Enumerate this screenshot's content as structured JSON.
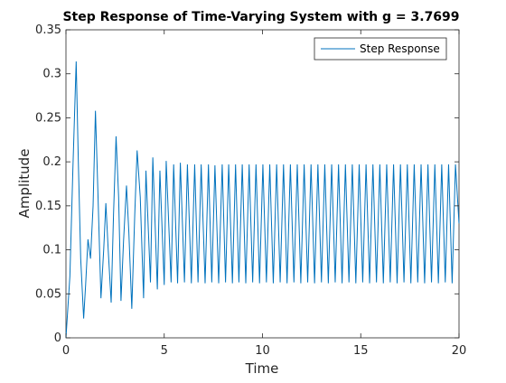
{
  "chart_data": {
    "type": "line",
    "title": "Step Response of Time-Varying System with g = 3.7699",
    "xlabel": "Time",
    "ylabel": "Amplitude",
    "xlim": [
      0,
      20
    ],
    "ylim": [
      0,
      0.35
    ],
    "xticks": [
      0,
      5,
      10,
      15,
      20
    ],
    "xtick_labels": [
      "0",
      "5",
      "10",
      "15",
      "20"
    ],
    "yticks": [
      0,
      0.05,
      0.1,
      0.15,
      0.2,
      0.25,
      0.3,
      0.35
    ],
    "ytick_labels": [
      "0",
      "0.05",
      "0.1",
      "0.15",
      "0.2",
      "0.25",
      "0.3",
      "0.35"
    ],
    "grid": false,
    "legend_position": "top-right",
    "series": [
      {
        "name": "Step Response",
        "color": "#0072BD",
        "x": [
          0,
          0.2,
          0.35,
          0.52,
          0.63,
          0.75,
          0.9,
          1.0,
          1.12,
          1.25,
          1.38,
          1.5,
          1.62,
          1.78,
          1.92,
          2.03,
          2.15,
          2.3,
          2.42,
          2.55,
          2.68,
          2.8,
          2.93,
          3.08,
          3.2,
          3.35,
          3.5,
          3.62,
          3.78,
          3.95,
          4.07,
          4.3,
          4.42,
          4.65,
          4.78,
          5.0,
          5.1,
          5.35,
          5.48,
          5.68,
          5.82,
          6.03,
          6.18,
          6.38,
          6.55,
          6.72,
          6.88,
          7.08,
          7.25,
          7.42,
          7.58,
          7.77,
          7.95,
          8.12,
          8.28,
          8.47,
          8.63,
          8.8,
          8.97,
          9.15,
          9.32,
          9.5,
          9.67,
          9.85,
          10.02,
          10.2,
          10.37,
          10.55,
          10.72,
          10.9,
          11.07,
          11.25,
          11.42,
          11.6,
          11.77,
          11.95,
          12.12,
          12.3,
          12.47,
          12.65,
          12.82,
          13.0,
          13.17,
          13.35,
          13.52,
          13.7,
          13.87,
          14.05,
          14.22,
          14.4,
          14.57,
          14.75,
          14.92,
          15.1,
          15.27,
          15.45,
          15.62,
          15.8,
          15.97,
          16.15,
          16.32,
          16.5,
          16.67,
          16.85,
          17.02,
          17.2,
          17.37,
          17.55,
          17.72,
          17.9,
          18.07,
          18.25,
          18.42,
          18.6,
          18.77,
          18.95,
          19.12,
          19.3,
          19.47,
          19.65,
          19.82,
          20.0
        ],
        "y": [
          0,
          0.07,
          0.19,
          0.314,
          0.2,
          0.09,
          0.022,
          0.06,
          0.112,
          0.09,
          0.15,
          0.258,
          0.17,
          0.045,
          0.1,
          0.153,
          0.1,
          0.04,
          0.14,
          0.229,
          0.16,
          0.042,
          0.11,
          0.173,
          0.12,
          0.033,
          0.14,
          0.213,
          0.16,
          0.045,
          0.19,
          0.063,
          0.205,
          0.055,
          0.19,
          0.06,
          0.201,
          0.063,
          0.197,
          0.062,
          0.199,
          0.063,
          0.197,
          0.062,
          0.197,
          0.063,
          0.197,
          0.062,
          0.197,
          0.063,
          0.196,
          0.062,
          0.197,
          0.063,
          0.197,
          0.062,
          0.197,
          0.063,
          0.197,
          0.062,
          0.197,
          0.063,
          0.197,
          0.062,
          0.197,
          0.063,
          0.197,
          0.062,
          0.197,
          0.063,
          0.197,
          0.062,
          0.197,
          0.063,
          0.197,
          0.062,
          0.197,
          0.063,
          0.197,
          0.062,
          0.197,
          0.063,
          0.197,
          0.062,
          0.197,
          0.063,
          0.197,
          0.062,
          0.197,
          0.063,
          0.197,
          0.062,
          0.197,
          0.063,
          0.197,
          0.062,
          0.197,
          0.063,
          0.197,
          0.062,
          0.197,
          0.063,
          0.197,
          0.062,
          0.197,
          0.063,
          0.197,
          0.062,
          0.197,
          0.063,
          0.197,
          0.062,
          0.197,
          0.063,
          0.197,
          0.062,
          0.197,
          0.063,
          0.197,
          0.062,
          0.197,
          0.13
        ]
      }
    ]
  }
}
